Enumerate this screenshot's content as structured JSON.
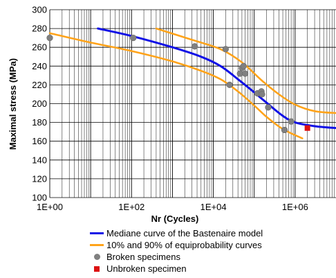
{
  "chart_data": {
    "type": "scatter",
    "title": "",
    "xlabel": "Nr (Cycles)",
    "ylabel": "Maximal stress (MPa)",
    "xscale": "log",
    "xlim": [
      1,
      10000000
    ],
    "ylim": [
      100,
      300
    ],
    "grid": true,
    "legend_position": "bottom",
    "x_ticks": [
      1,
      100,
      10000,
      1000000
    ],
    "x_tick_labels": [
      "1E+00",
      "1E+02",
      "1E+04",
      "1E+06"
    ],
    "y_ticks": [
      100,
      120,
      140,
      160,
      180,
      200,
      220,
      240,
      260,
      280,
      300
    ],
    "series": [
      {
        "name": "Mediane curve of the Bastenaire model",
        "kind": "line",
        "color": "#1010e6",
        "points": [
          [
            15,
            280
          ],
          [
            100,
            272
          ],
          [
            1000,
            260
          ],
          [
            5000,
            250
          ],
          [
            15000,
            240
          ],
          [
            40000,
            226
          ],
          [
            100000,
            212
          ],
          [
            200000,
            201
          ],
          [
            500000,
            187
          ],
          [
            1000000,
            180
          ],
          [
            3000000,
            176
          ],
          [
            10000000,
            174
          ]
        ]
      },
      {
        "name": "10% and 90% of equiprobability curves",
        "kind": "line",
        "color": "#ffa31a",
        "points": [
          [
            1,
            275
          ],
          [
            10,
            265
          ],
          [
            100,
            256
          ],
          [
            1000,
            245
          ],
          [
            5000,
            235
          ],
          [
            15000,
            226
          ],
          [
            40000,
            213
          ],
          [
            100000,
            198
          ],
          [
            200000,
            186
          ],
          [
            500000,
            173
          ],
          [
            1500000,
            163
          ]
        ]
      },
      {
        "name": "",
        "kind": "line",
        "color": "#ffa31a",
        "points": [
          [
            400,
            280
          ],
          [
            3000,
            268
          ],
          [
            15000,
            258
          ],
          [
            50000,
            244
          ],
          [
            150000,
            225
          ],
          [
            400000,
            210
          ],
          [
            1000000,
            199
          ],
          [
            3000000,
            192
          ],
          [
            10000000,
            190
          ]
        ]
      },
      {
        "name": "Broken specimens",
        "kind": "scatter",
        "color": "#808080",
        "points": [
          [
            1,
            270
          ],
          [
            110,
            270
          ],
          [
            3500,
            261
          ],
          [
            20000,
            258
          ],
          [
            25000,
            220
          ],
          [
            45000,
            232
          ],
          [
            50000,
            238
          ],
          [
            55000,
            240
          ],
          [
            60000,
            232
          ],
          [
            120000,
            211
          ],
          [
            150000,
            213
          ],
          [
            155000,
            210
          ],
          [
            220000,
            196
          ],
          [
            550000,
            172
          ],
          [
            800000,
            181
          ]
        ]
      },
      {
        "name": "Unbroken specimen",
        "kind": "scatter",
        "color": "#dd1111",
        "marker": "square",
        "points": [
          [
            2000000,
            174
          ]
        ]
      }
    ]
  }
}
